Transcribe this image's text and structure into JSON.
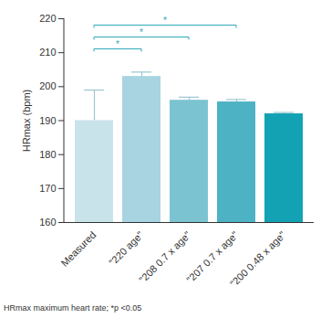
{
  "chart_data": {
    "type": "bar",
    "y_label": "HRmax (bpm)",
    "caption": "HRmax maximum heart rate; *p <0.05",
    "categories": [
      "Measured",
      "\"220 age\"",
      "\"208 0.7 x age\"",
      "\"207 0.7 x age\"",
      "\"200 0.48 x age\""
    ],
    "values": [
      190,
      203,
      196,
      195.5,
      192
    ],
    "errors": [
      9,
      1.3,
      0.9,
      0.7,
      0.4
    ],
    "colors": [
      "#c9e3eb",
      "#a7d4e0",
      "#7cc3d1",
      "#4db2c3",
      "#12a2b4"
    ],
    "significance": [
      {
        "from": "Measured",
        "to": "\"220 age\"",
        "y": 211,
        "label": "*"
      },
      {
        "from": "Measured",
        "to": "\"208 0.7 x age\"",
        "y": 214.5,
        "label": "*"
      },
      {
        "from": "Measured",
        "to": "\"207 0.7 x age\"",
        "y": 218,
        "label": "*"
      }
    ],
    "significance_color": "#2ba6b7",
    "ylim": [
      160,
      220
    ],
    "yticks": [
      160,
      170,
      180,
      190,
      200,
      210,
      220
    ],
    "grid": false
  }
}
